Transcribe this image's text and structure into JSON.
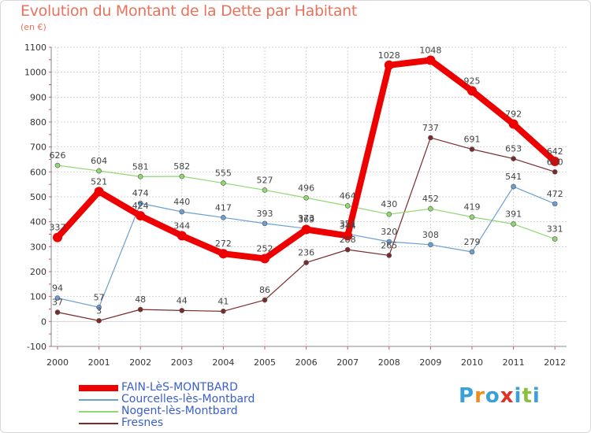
{
  "header": {
    "title": "Evolution du Montant de la Dette par Habitant",
    "subtitle": "(en €)"
  },
  "logo": {
    "text": "Proxiti",
    "colors": [
      "#3aa0d8",
      "#f08c1c",
      "#3aa0d8",
      "#e0302a",
      "#3aa0d8",
      "#88c040",
      "#3aa0d8"
    ]
  },
  "chart_data": {
    "type": "line",
    "title": "Evolution du Montant de la Dette par Habitant",
    "ylabel": "(en €)",
    "xlabel": "",
    "ylim": [
      -100,
      1100
    ],
    "yticks": [
      -100,
      0,
      100,
      200,
      300,
      400,
      500,
      600,
      700,
      800,
      900,
      1000,
      1100
    ],
    "grid": true,
    "legend": "bottom-left",
    "categories": [
      "2000",
      "2001",
      "2002",
      "2003",
      "2004",
      "2005",
      "2006",
      "2007",
      "2008",
      "2009",
      "2010",
      "2011",
      "2012"
    ],
    "series": [
      {
        "name": "FAIN-LèS-MONTBARD",
        "color": "#ee0000",
        "values": [
          337,
          521,
          424,
          344,
          272,
          252,
          369,
          344,
          1028,
          1048,
          925,
          792,
          642
        ],
        "labels": [
          "337",
          "521",
          "424",
          "344",
          "272",
          "252",
          "369",
          "344",
          "1028",
          "1048",
          "925",
          "792",
          "642"
        ]
      },
      {
        "name": "Courcelles-lès-Montbard",
        "color": "#6b9fd4",
        "values": [
          94,
          57,
          474,
          440,
          417,
          393,
          373,
          351,
          320,
          308,
          279,
          541,
          472
        ],
        "labels": [
          "94",
          "57",
          "474",
          "440",
          "417",
          "393",
          "373",
          "351",
          "320",
          "308",
          "279",
          "541",
          "472"
        ]
      },
      {
        "name": "Nogent-lès-Montbard",
        "color": "#90d870",
        "values": [
          626,
          604,
          581,
          582,
          555,
          527,
          496,
          464,
          430,
          452,
          419,
          391,
          331
        ],
        "labels": [
          "626",
          "604",
          "581",
          "582",
          "555",
          "527",
          "496",
          "464",
          "430",
          "452",
          "419",
          "391",
          "331"
        ]
      },
      {
        "name": "Fresnes",
        "color": "#7a2a2a",
        "values": [
          37,
          3,
          48,
          44,
          41,
          86,
          236,
          288,
          265,
          737,
          691,
          653,
          600
        ],
        "labels": [
          "37",
          "3",
          "48",
          "44",
          "41",
          "86",
          "236",
          "288",
          "265",
          "737",
          "691",
          "653",
          "600"
        ]
      }
    ]
  }
}
